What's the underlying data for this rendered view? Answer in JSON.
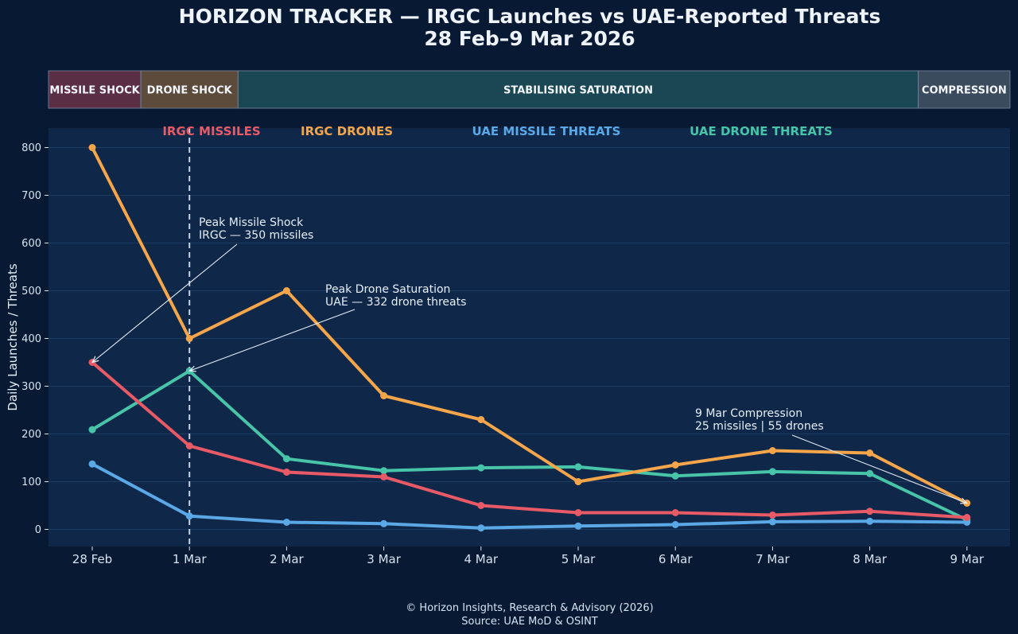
{
  "title_line1": "HORIZON TRACKER — IRGC Launches vs UAE-Reported Threats",
  "title_line2": "28 Feb–9 Mar 2026",
  "phases": [
    {
      "label": "MISSILE SHOCK",
      "start_index": 0,
      "end_index": 1,
      "fill": "#5a2f46"
    },
    {
      "label": "DRONE SHOCK",
      "start_index": 1,
      "end_index": 2,
      "fill": "#5c4a3b"
    },
    {
      "label": "STABILISING SATURATION",
      "start_index": 2,
      "end_index": 9,
      "fill": "#1a4753"
    },
    {
      "label": "COMPRESSION",
      "start_index": 9,
      "end_index": 10,
      "fill": "#3b4b5e"
    }
  ],
  "footer_line1": "© Horizon Insights, Research & Advisory (2026)",
  "footer_line2": "Source: UAE MoD & OSINT",
  "colors": {
    "background": "#081a33",
    "plot_bg": "#0f2749",
    "grid": "#1d3a60",
    "text": "#e6eef8",
    "tick": "#d6e2f0"
  },
  "chart_data": {
    "type": "line",
    "title": "HORIZON TRACKER — IRGC Launches vs UAE-Reported Threats 28 Feb–9 Mar 2026",
    "xlabel": "",
    "ylabel": "Daily Launches / Threats",
    "categories": [
      "28 Feb",
      "1 Mar",
      "2 Mar",
      "3 Mar",
      "4 Mar",
      "5 Mar",
      "6 Mar",
      "7 Mar",
      "8 Mar",
      "9 Mar"
    ],
    "ylim": [
      -35,
      840
    ],
    "yticks": [
      0,
      100,
      200,
      300,
      400,
      500,
      600,
      700,
      800
    ],
    "grid": true,
    "legend_position": "top",
    "series": [
      {
        "name": "IRGC MISSILES",
        "color": "#e85a66",
        "values": [
          350,
          175,
          120,
          110,
          50,
          35,
          35,
          30,
          38,
          25
        ]
      },
      {
        "name": "IRGC DRONES",
        "color": "#f5a54a",
        "values": [
          800,
          400,
          500,
          280,
          230,
          100,
          135,
          165,
          160,
          55
        ]
      },
      {
        "name": "UAE MISSILE THREATS",
        "color": "#5aa8e6",
        "values": [
          137,
          28,
          15,
          12,
          3,
          7,
          10,
          16,
          17,
          15
        ]
      },
      {
        "name": "UAE DRONE THREATS",
        "color": "#48c4a8",
        "values": [
          209,
          332,
          148,
          123,
          129,
          131,
          112,
          121,
          117,
          20
        ]
      }
    ],
    "reference_line": {
      "x_index": 1,
      "style": "dashed"
    },
    "annotations": [
      {
        "lines": [
          "Peak Missile Shock",
          "IRGC — 350 missiles"
        ],
        "target_index": 0,
        "target_value": 350
      },
      {
        "lines": [
          "Peak Drone Saturation",
          "UAE — 332 drone threats"
        ],
        "target_index": 1,
        "target_value": 332
      },
      {
        "lines": [
          "9 Mar Compression",
          "25 missiles | 55 drones"
        ],
        "target_index": 9,
        "target_value": 55
      }
    ]
  }
}
